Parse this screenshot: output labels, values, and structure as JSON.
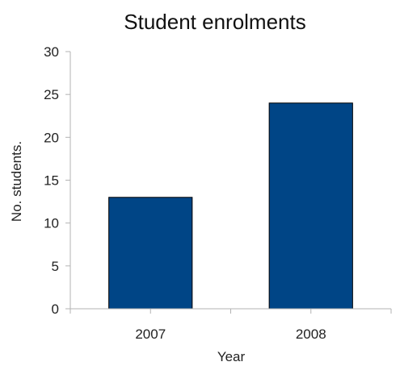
{
  "chart_data": {
    "type": "bar",
    "title": "Student enrolments",
    "xlabel": "Year",
    "ylabel": "No. students.",
    "categories": [
      "2007",
      "2008"
    ],
    "values": [
      13,
      24
    ],
    "ylim": [
      0,
      30
    ],
    "yticks": [
      "0",
      "5",
      "10",
      "15",
      "20",
      "25",
      "30"
    ],
    "grid": false,
    "legend": "none",
    "bar_color": "#004586",
    "bar_stroke": "#000000",
    "axis_color": "#b3b3b3"
  }
}
